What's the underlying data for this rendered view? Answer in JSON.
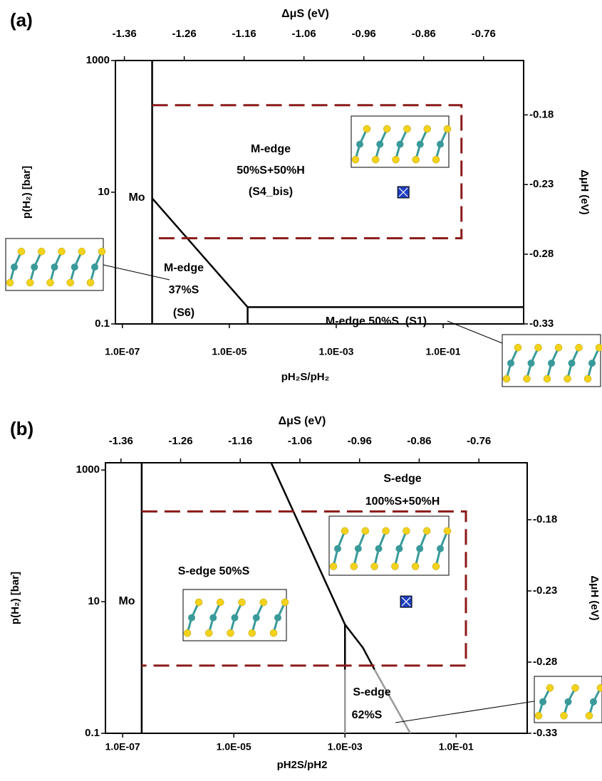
{
  "chart_data": [
    {
      "type": "phase-diagram",
      "panel_label": "(a)",
      "x_label": "pH₂S/pH₂",
      "y_label": "p(H₂) [bar]",
      "x2_label": "ΔμS (eV)",
      "y2_label": "ΔμH (eV)",
      "log_x": true,
      "log_y": true,
      "xlim": [
        7.4e-08,
        3.2
      ],
      "xticks": [
        {
          "value": 1e-07,
          "label": "1.0E-07"
        },
        {
          "value": 1e-05,
          "label": "1.0E-05"
        },
        {
          "value": 0.001,
          "label": "1.0E-03"
        },
        {
          "value": 0.1,
          "label": "1.0E-01"
        }
      ],
      "ylim": [
        0.1,
        1000
      ],
      "yticks": [
        0.1,
        10,
        1000
      ],
      "x2lim": [
        -1.375,
        -0.693
      ],
      "x2ticks": [
        -1.36,
        -1.26,
        -1.16,
        -1.06,
        -0.96,
        -0.86,
        -0.76
      ],
      "y2lim": [
        -0.33,
        -0.141
      ],
      "y2ticks": [
        -0.18,
        -0.23,
        -0.28,
        -0.33
      ],
      "series": [
        {
          "color": "#000000",
          "dashed": false,
          "x": [
            3.6e-07,
            3.6e-07
          ],
          "values": [
            0.1,
            1000
          ]
        },
        {
          "color": "#000000",
          "dashed": false,
          "x": [
            3.6e-07,
            2.2e-05,
            3.2
          ],
          "values": [
            8.1,
            0.18,
            0.18
          ]
        },
        {
          "color": "#000000",
          "dashed": false,
          "x": [
            2.2e-05,
            2.2e-05
          ],
          "values": [
            0.1,
            0.18
          ]
        },
        {
          "color": "#8b1a1a",
          "dashed": true,
          "x": [
            3.6e-07,
            0.22,
            0.22,
            3.6e-07
          ],
          "values": [
            210,
            210,
            2.0,
            2.0
          ]
        }
      ],
      "points": {
        "color": "#1f3fbf",
        "x": [
          0.018
        ],
        "values": [
          10
        ]
      },
      "annotations": [
        "Mo",
        "M-edge",
        "50%S+50%H",
        "(S4_bis)",
        "M-edge",
        "37%S",
        "(S6)",
        "M-edge 50%S  (S1)"
      ]
    },
    {
      "type": "phase-diagram",
      "panel_label": "(b)",
      "x_label": "pH2S/pH2",
      "y_label": "p(H₂) [bar]",
      "x2_label": "ΔμS (eV)",
      "y2_label": "ΔμH (eV)",
      "log_x": true,
      "log_y": true,
      "xlim": [
        4.9e-08,
        1.9
      ],
      "xticks": [
        {
          "value": 1e-07,
          "label": "1.0E-07"
        },
        {
          "value": 1e-05,
          "label": "1.0E-05"
        },
        {
          "value": 0.001,
          "label": "1.0E-03"
        },
        {
          "value": 0.1,
          "label": "1.0E-01"
        }
      ],
      "ylim": [
        0.1,
        1290
      ],
      "yticks": [
        0.1,
        10,
        1000
      ],
      "x2lim": [
        -1.386,
        -0.679
      ],
      "x2ticks": [
        -1.36,
        -1.26,
        -1.16,
        -1.06,
        -0.96,
        -0.86,
        -0.76
      ],
      "y2lim": [
        -0.33,
        -0.14
      ],
      "y2ticks": [
        -0.18,
        -0.23,
        -0.28,
        -0.33
      ],
      "series": [
        {
          "color": "#000000",
          "dashed": false,
          "x": [
            2.2e-07,
            2.2e-07
          ],
          "values": [
            0.1,
            1290
          ]
        },
        {
          "color": "#000000",
          "dashed": false,
          "x": [
            4.7e-05,
            0.001,
            0.0021,
            0.0034
          ],
          "values": [
            1290,
            4.5,
            2.0,
            0.93
          ]
        },
        {
          "color": "#999999",
          "dashed": false,
          "x": [
            0.0034,
            0.015
          ],
          "values": [
            0.93,
            0.1
          ]
        },
        {
          "color": "#000000",
          "dashed": false,
          "x": [
            0.001,
            0.001
          ],
          "values": [
            4.5,
            0.93
          ]
        },
        {
          "color": "#999999",
          "dashed": false,
          "x": [
            0.001,
            0.001
          ],
          "values": [
            0.93,
            0.1
          ]
        },
        {
          "color": "#8b1a1a",
          "dashed": true,
          "x": [
            2.2e-07,
            0.15,
            0.15,
            2.2e-07
          ],
          "values": [
            235,
            235,
            1.07,
            1.07
          ]
        }
      ],
      "points": {
        "color": "#1f3fbf",
        "x": [
          0.0126
        ],
        "values": [
          10
        ]
      },
      "annotations": [
        "Mo",
        "S-edge",
        "100%S+50%H",
        "S-edge 50%S",
        "S-edge",
        "62%S"
      ]
    }
  ]
}
